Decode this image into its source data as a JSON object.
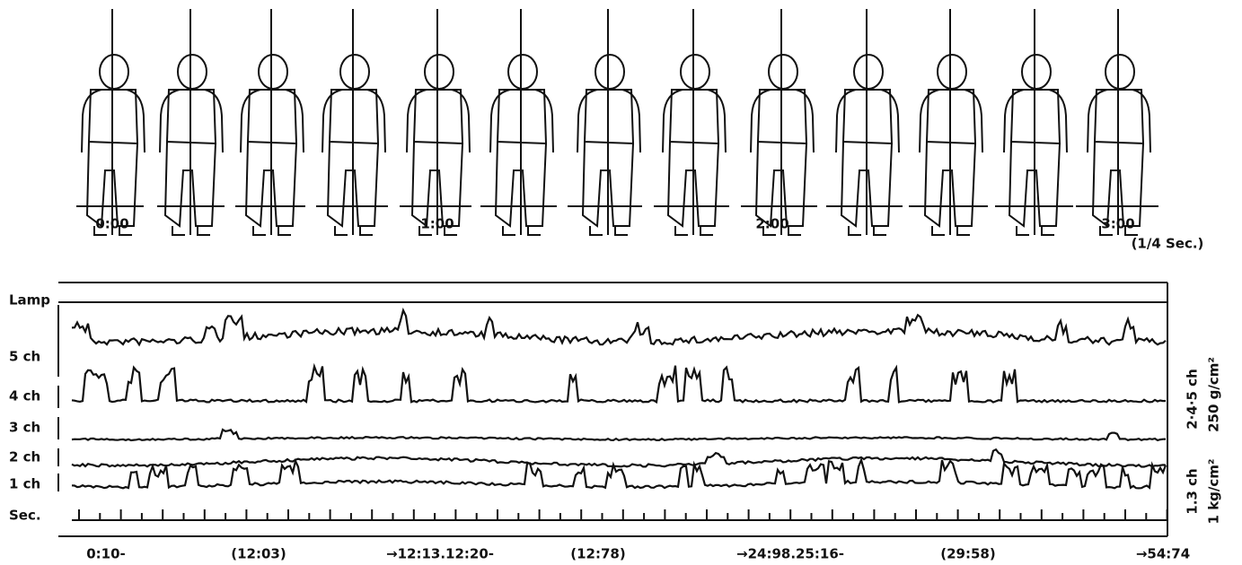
{
  "frames": {
    "labels": [
      "0:00",
      "1:00",
      "2:00",
      "3:00"
    ],
    "unit": "(1/4 Sec.)"
  },
  "channels": [
    "Lamp",
    "5 ch",
    "4 ch",
    "3 ch",
    "2 ch",
    "1 ch",
    "Sec."
  ],
  "time_labels": [
    "0:10-",
    "(12:03)",
    "→12:13.12:20-",
    "(12:78)",
    "→24:98.25:16-",
    "(29:58)",
    "→54:74"
  ],
  "scales": [
    "2·4·5 ch",
    "250 g/cm²",
    "1.3 ch",
    "1 kg/cm²"
  ]
}
